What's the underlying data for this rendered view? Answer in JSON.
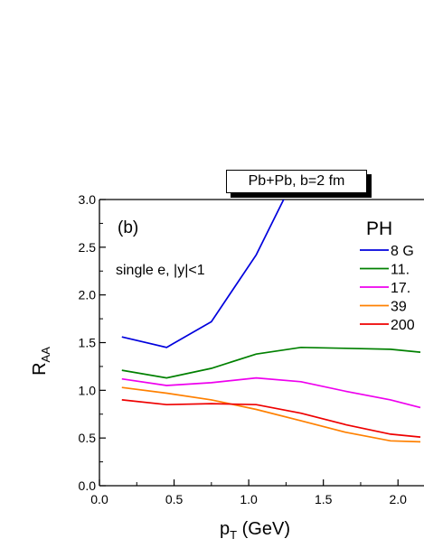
{
  "chart_data": {
    "type": "line",
    "title": "Pb+Pb, b=2 fm",
    "panel_label": "(b)",
    "annotation": "single e, |y|<1",
    "legend_title": "PH",
    "legend_position": "top-right",
    "xlabel": {
      "main": "p",
      "sub": "T",
      "rest": " (GeV)"
    },
    "ylabel": {
      "main": "R",
      "sub": "AA"
    },
    "xlim": [
      0.0,
      2.15
    ],
    "ylim": [
      0.0,
      3.0
    ],
    "xticks": [
      "0.0",
      "0.5",
      "1.0",
      "1.5",
      "2.0"
    ],
    "yticks": [
      "0.0",
      "0.5",
      "1.0",
      "1.5",
      "2.0",
      "2.5",
      "3.0"
    ],
    "grid": false,
    "series": [
      {
        "name": "8 G",
        "color": "#0000dd",
        "x": [
          0.15,
          0.45,
          0.75,
          1.05,
          1.25
        ],
        "y": [
          1.56,
          1.45,
          1.72,
          2.42,
          3.05
        ]
      },
      {
        "name": "11.",
        "color": "#008000",
        "x": [
          0.15,
          0.45,
          0.75,
          1.05,
          1.35,
          1.65,
          1.95,
          2.15
        ],
        "y": [
          1.21,
          1.13,
          1.23,
          1.38,
          1.45,
          1.44,
          1.43,
          1.4
        ]
      },
      {
        "name": "17.",
        "color": "#ee00ee",
        "x": [
          0.15,
          0.45,
          0.75,
          1.05,
          1.35,
          1.65,
          1.95,
          2.15
        ],
        "y": [
          1.12,
          1.05,
          1.08,
          1.13,
          1.09,
          0.99,
          0.9,
          0.82
        ]
      },
      {
        "name": "39",
        "color": "#ff8000",
        "x": [
          0.15,
          0.45,
          0.75,
          1.05,
          1.35,
          1.65,
          1.95,
          2.15
        ],
        "y": [
          1.03,
          0.97,
          0.9,
          0.8,
          0.68,
          0.56,
          0.47,
          0.46
        ]
      },
      {
        "name": "200",
        "color": "#ee0000",
        "x": [
          0.15,
          0.45,
          0.75,
          1.05,
          1.35,
          1.65,
          1.95,
          2.15
        ],
        "y": [
          0.9,
          0.85,
          0.86,
          0.85,
          0.76,
          0.64,
          0.54,
          0.51
        ]
      }
    ]
  }
}
